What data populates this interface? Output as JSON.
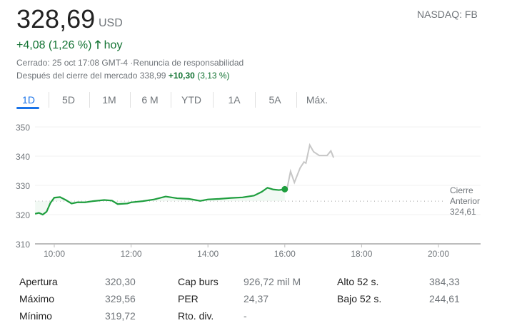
{
  "quote": {
    "price": "328,69",
    "currency": "USD",
    "exchange": "NASDAQ: FB",
    "change": "+4,08 (1,26 %)",
    "change_suffix": "hoy",
    "status": "Cerrado: 25 oct 17:08 GMT-4",
    "disclaimer": "Renuncia de responsabilidad",
    "after_label": "Después del cierre del mercado 338,99",
    "after_change": "+10,30",
    "after_pct": "(3,13 %)"
  },
  "tabs": [
    "1D",
    "5D",
    "1M",
    "6 M",
    "YTD",
    "1A",
    "5A",
    "Máx."
  ],
  "selected_tab": "1D",
  "colors": {
    "up": "#137333",
    "line": "#1e9e3e",
    "after": "#c6c6c6",
    "accent": "#1a73e8"
  },
  "chart_data": {
    "type": "line",
    "ylim": [
      310,
      350
    ],
    "yticks": [
      "350",
      "340",
      "330",
      "320",
      "310"
    ],
    "xticks": [
      "10:00",
      "12:00",
      "14:00",
      "16:00",
      "18:00",
      "20:00"
    ],
    "previous_close": {
      "label1": "Cierre",
      "label2": "Anterior",
      "value": "324,61",
      "y": 324.61
    },
    "series": [
      {
        "name": "session",
        "points": [
          [
            9.5,
            320.3
          ],
          [
            9.6,
            320.6
          ],
          [
            9.7,
            320.0
          ],
          [
            9.8,
            321
          ],
          [
            9.9,
            324
          ],
          [
            10.0,
            325.8
          ],
          [
            10.15,
            326
          ],
          [
            10.3,
            325
          ],
          [
            10.45,
            323.8
          ],
          [
            10.6,
            324.2
          ],
          [
            10.8,
            324.2
          ],
          [
            11.0,
            324.6
          ],
          [
            11.3,
            325.0
          ],
          [
            11.5,
            324.8
          ],
          [
            11.65,
            323.6
          ],
          [
            11.9,
            323.8
          ],
          [
            12.0,
            324.2
          ],
          [
            12.3,
            324.6
          ],
          [
            12.6,
            325.2
          ],
          [
            12.9,
            326.2
          ],
          [
            13.2,
            325.6
          ],
          [
            13.5,
            325.4
          ],
          [
            13.8,
            324.7
          ],
          [
            14.0,
            325.2
          ],
          [
            14.3,
            325.4
          ],
          [
            14.6,
            325.7
          ],
          [
            14.9,
            325.9
          ],
          [
            15.2,
            326.5
          ],
          [
            15.4,
            327.8
          ],
          [
            15.55,
            329.2
          ],
          [
            15.7,
            328.6
          ],
          [
            15.85,
            328.4
          ],
          [
            16.0,
            328.69
          ]
        ]
      },
      {
        "name": "after_hours",
        "points": [
          [
            16.0,
            328.69
          ],
          [
            16.05,
            328.3
          ],
          [
            16.15,
            334.8
          ],
          [
            16.25,
            331
          ],
          [
            16.4,
            336
          ],
          [
            16.5,
            338
          ],
          [
            16.55,
            337.6
          ],
          [
            16.65,
            343.8
          ],
          [
            16.75,
            341.5
          ],
          [
            16.9,
            340.2
          ],
          [
            17.1,
            340.2
          ],
          [
            17.2,
            341.8
          ],
          [
            17.27,
            339.5
          ]
        ]
      }
    ]
  },
  "stats": [
    [
      {
        "k": "Apertura",
        "v": "320,30"
      },
      {
        "k": "Cap burs",
        "v": "926,72 mil M"
      },
      {
        "k": "Alto 52 s.",
        "v": "384,33"
      }
    ],
    [
      {
        "k": "Máximo",
        "v": "329,56"
      },
      {
        "k": "PER",
        "v": "24,37"
      },
      {
        "k": "Bajo 52 s.",
        "v": "244,61"
      }
    ],
    [
      {
        "k": "Mínimo",
        "v": "319,72"
      },
      {
        "k": "Rto. div.",
        "v": "-"
      }
    ]
  ]
}
